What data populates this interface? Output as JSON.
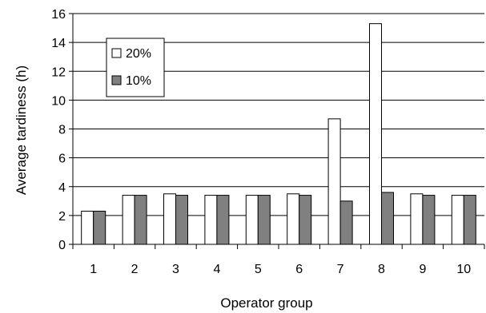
{
  "chart_data": {
    "type": "bar",
    "title": "",
    "xlabel": "Operator group",
    "ylabel": "Average tardiness (h)",
    "categories": [
      "1",
      "2",
      "3",
      "4",
      "5",
      "6",
      "7",
      "8",
      "9",
      "10"
    ],
    "ylim": [
      0,
      16
    ],
    "yticks": [
      "0",
      "2",
      "4",
      "6",
      "8",
      "10",
      "12",
      "14",
      "16"
    ],
    "grid": "horizontal",
    "legend_position": "top-left",
    "series": [
      {
        "name": "20%",
        "color": "#ffffff",
        "values": [
          2.3,
          3.4,
          3.5,
          3.4,
          3.4,
          3.5,
          8.7,
          15.3,
          3.5,
          3.4
        ]
      },
      {
        "name": "10%",
        "color": "#808080",
        "values": [
          2.3,
          3.4,
          3.4,
          3.4,
          3.4,
          3.4,
          3.0,
          3.6,
          3.4,
          3.4
        ]
      }
    ]
  }
}
